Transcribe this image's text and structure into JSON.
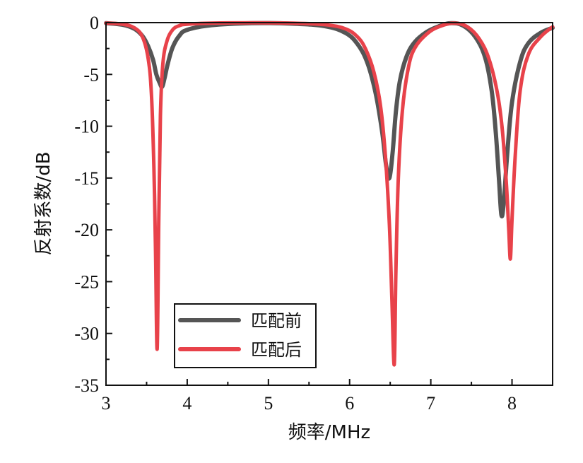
{
  "chart_data": {
    "type": "line",
    "xlabel": "频率/MHz",
    "ylabel": "反射系数/dB",
    "xlim": [
      3,
      8.5
    ],
    "ylim": [
      -35,
      0
    ],
    "x_ticks": [
      "3",
      "4",
      "5",
      "6",
      "7",
      "8"
    ],
    "y_ticks": [
      "0",
      "-5",
      "-10",
      "-15",
      "-20",
      "-25",
      "-30",
      "-35"
    ],
    "grid": false,
    "legend_position": "bottom-left",
    "series": [
      {
        "name": "匹配前",
        "color": "#555555",
        "x": [
          3.0,
          3.2,
          3.35,
          3.45,
          3.52,
          3.58,
          3.62,
          3.66,
          3.69,
          3.72,
          3.76,
          3.82,
          3.9,
          4.0,
          4.3,
          4.8,
          5.3,
          5.7,
          5.95,
          6.1,
          6.22,
          6.32,
          6.4,
          6.45,
          6.49,
          6.53,
          6.57,
          6.62,
          6.7,
          6.8,
          6.95,
          7.1,
          7.25,
          7.4,
          7.55,
          7.67,
          7.75,
          7.8,
          7.84,
          7.87,
          7.9,
          7.94,
          8.0,
          8.1,
          8.2,
          8.35,
          8.5
        ],
        "values": [
          -0.05,
          -0.2,
          -0.6,
          -1.3,
          -2.3,
          -3.6,
          -5.0,
          -5.8,
          -6.2,
          -5.4,
          -4.0,
          -2.4,
          -1.3,
          -0.7,
          -0.25,
          -0.05,
          -0.1,
          -0.35,
          -1.0,
          -2.1,
          -3.9,
          -6.8,
          -10.5,
          -13.8,
          -15.0,
          -12.5,
          -8.6,
          -5.6,
          -3.3,
          -1.9,
          -0.9,
          -0.35,
          -0.05,
          -0.3,
          -1.4,
          -3.4,
          -6.6,
          -10.6,
          -15.2,
          -18.6,
          -17.2,
          -12.8,
          -7.7,
          -3.8,
          -2.0,
          -1.0,
          -0.5
        ]
      },
      {
        "name": "匹配后",
        "color": "#e8424a",
        "x": [
          3.0,
          3.2,
          3.35,
          3.45,
          3.52,
          3.56,
          3.59,
          3.61,
          3.63,
          3.65,
          3.67,
          3.7,
          3.75,
          3.82,
          3.9,
          4.0,
          4.3,
          4.8,
          5.3,
          5.7,
          5.95,
          6.1,
          6.2,
          6.3,
          6.38,
          6.44,
          6.49,
          6.52,
          6.55,
          6.57,
          6.6,
          6.65,
          6.72,
          6.8,
          6.95,
          7.1,
          7.28,
          7.45,
          7.6,
          7.72,
          7.82,
          7.88,
          7.93,
          7.96,
          7.98,
          8.0,
          8.04,
          8.1,
          8.2,
          8.35,
          8.5
        ],
        "values": [
          -0.05,
          -0.15,
          -0.5,
          -1.4,
          -3.5,
          -7.0,
          -14.0,
          -22.0,
          -31.5,
          -19.0,
          -9.0,
          -4.0,
          -1.8,
          -0.7,
          -0.3,
          -0.15,
          -0.05,
          -0.02,
          -0.05,
          -0.2,
          -0.6,
          -1.4,
          -2.6,
          -4.8,
          -8.0,
          -12.8,
          -19.5,
          -26.5,
          -33.0,
          -24.0,
          -15.0,
          -8.5,
          -4.5,
          -2.5,
          -1.1,
          -0.4,
          -0.05,
          -0.4,
          -1.6,
          -3.6,
          -6.8,
          -10.3,
          -15.5,
          -20.0,
          -22.8,
          -19.0,
          -12.8,
          -6.6,
          -3.1,
          -1.4,
          -0.4
        ]
      }
    ]
  }
}
